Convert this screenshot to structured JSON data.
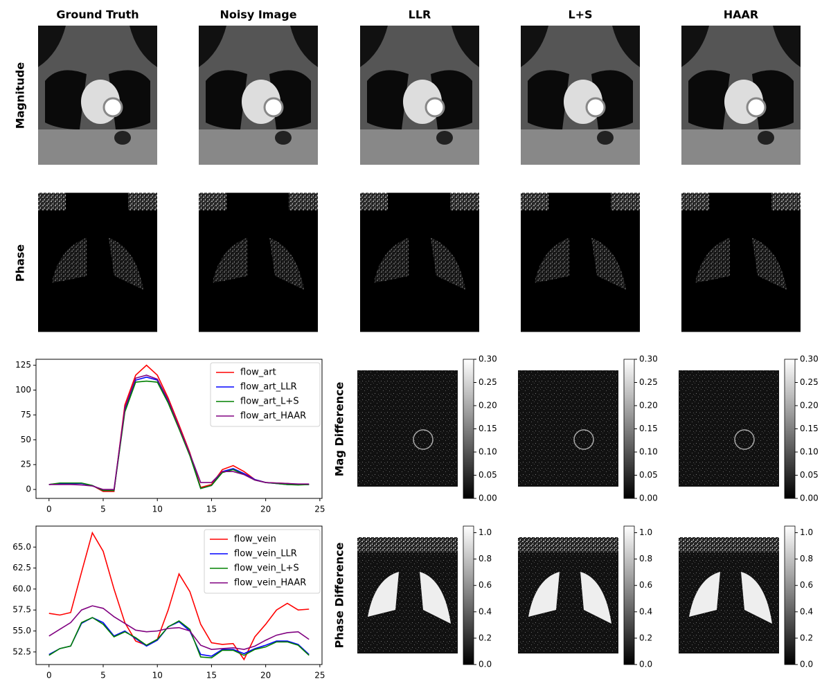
{
  "column_titles": [
    "Ground Truth",
    "Noisy Image",
    "LLR",
    "L+S",
    "HAAR"
  ],
  "row_labels": [
    "Magnitude",
    "Phase",
    "Mag Difference",
    "Phase Difference"
  ],
  "chart_data": [
    {
      "type": "line",
      "legend": "upper right",
      "grid": false,
      "x": [
        0,
        1,
        2,
        3,
        4,
        5,
        6,
        7,
        8,
        9,
        10,
        11,
        12,
        13,
        14,
        15,
        16,
        17,
        18,
        19,
        20,
        21,
        22,
        23,
        24
      ],
      "xlim": [
        -1.2,
        25.2
      ],
      "xticks": [
        0,
        5,
        10,
        15,
        20,
        25
      ],
      "ylim": [
        -9,
        131
      ],
      "yticks": [
        0,
        25,
        50,
        75,
        100,
        125
      ],
      "series": [
        {
          "name": "flow_art",
          "color": "red",
          "values": [
            5,
            6,
            6,
            6,
            4,
            -2,
            -2,
            85,
            115,
            125,
            115,
            92,
            65,
            37,
            2,
            5,
            20,
            24,
            18,
            10,
            7,
            6.5,
            6,
            5,
            5
          ]
        },
        {
          "name": "flow_art_LLR",
          "color": "blue",
          "values": [
            5,
            6,
            6,
            6,
            4,
            -1,
            -1,
            80,
            110,
            113,
            110,
            88,
            62,
            35,
            1,
            4,
            18,
            21,
            16,
            10,
            7,
            6,
            5,
            5,
            5
          ]
        },
        {
          "name": "flow_art_L+S",
          "color": "green",
          "values": [
            5,
            6.5,
            6.5,
            6.5,
            4,
            -1,
            -1,
            78,
            108,
            109,
            108,
            87,
            61,
            34,
            1,
            4,
            17,
            20,
            15,
            9.5,
            7,
            6,
            5,
            4.5,
            5
          ]
        },
        {
          "name": "flow_art_HAAR",
          "color": "purple",
          "values": [
            5,
            5,
            5,
            4.5,
            3.5,
            0,
            0,
            82,
            112,
            115,
            111,
            90,
            63,
            36,
            7,
            7,
            18,
            18,
            15,
            9.5,
            7,
            6.5,
            6,
            5.5,
            5.5
          ]
        }
      ]
    },
    {
      "type": "line",
      "legend": "upper right",
      "grid": false,
      "x": [
        0,
        1,
        2,
        3,
        4,
        5,
        6,
        7,
        8,
        9,
        10,
        11,
        12,
        13,
        14,
        15,
        16,
        17,
        18,
        19,
        20,
        21,
        22,
        23,
        24
      ],
      "xlim": [
        -1.2,
        25.2
      ],
      "xticks": [
        0,
        5,
        10,
        15,
        20,
        25
      ],
      "ylim": [
        51.0,
        67.5
      ],
      "yticks": [
        52.5,
        {
          "value": 55,
          "label": "55.0"
        },
        57.5,
        {
          "value": 60,
          "label": "60.0"
        },
        62.5,
        {
          "value": 65,
          "label": "65.0"
        }
      ],
      "series": [
        {
          "name": "flow_vein",
          "color": "red",
          "values": [
            57.1,
            56.9,
            57.2,
            62,
            66.7,
            64.5,
            60,
            56,
            53.8,
            53.3,
            54,
            57.5,
            61.8,
            59.7,
            55.8,
            53.6,
            53.4,
            53.5,
            51.6,
            54.3,
            55.8,
            57.5,
            58.3,
            57.5,
            57.6
          ]
        },
        {
          "name": "flow_vein_LLR",
          "color": "blue",
          "values": [
            52.2,
            52.9,
            53.2,
            55.9,
            56.6,
            56.0,
            54.4,
            55,
            54.1,
            53.2,
            53.9,
            55.5,
            56.1,
            55.0,
            52.2,
            52.0,
            52.8,
            52.8,
            52.3,
            52.9,
            53.3,
            53.8,
            53.8,
            53.4,
            52.2
          ]
        },
        {
          "name": "flow_vein_L+S",
          "color": "green",
          "values": [
            52.1,
            52.9,
            53.2,
            56.0,
            56.6,
            55.8,
            54.3,
            54.9,
            54.2,
            53.3,
            54,
            55.5,
            56.2,
            55.2,
            51.9,
            51.8,
            52.7,
            52.7,
            52.1,
            52.8,
            53.1,
            53.7,
            53.7,
            53.3,
            52.1
          ]
        },
        {
          "name": "flow_vein_HAAR",
          "color": "purple",
          "values": [
            54.4,
            55.2,
            56,
            57.5,
            58,
            57.7,
            56.7,
            55.9,
            55.1,
            54.9,
            55,
            55.3,
            55.4,
            55,
            53.3,
            52.8,
            52.9,
            53,
            52.8,
            53.2,
            53.9,
            54.5,
            54.8,
            54.9,
            54
          ]
        }
      ]
    }
  ],
  "colorbars": [
    {
      "ylim": [
        0,
        0.3
      ],
      "yticks": [
        {
          "value": 0,
          "label": "0.00"
        },
        {
          "value": 0.05,
          "label": "0.05"
        },
        {
          "value": 0.1,
          "label": "0.10"
        },
        {
          "value": 0.15,
          "label": "0.15"
        },
        {
          "value": 0.2,
          "label": "0.20"
        },
        {
          "value": 0.25,
          "label": "0.25"
        },
        {
          "value": 0.3,
          "label": "0.30"
        }
      ]
    },
    {
      "ylim": [
        0,
        1.05
      ],
      "yticks": [
        {
          "value": 0,
          "label": "0.0"
        },
        0.2,
        0.4,
        0.6,
        0.8,
        {
          "value": 1,
          "label": "1.0"
        }
      ]
    }
  ]
}
